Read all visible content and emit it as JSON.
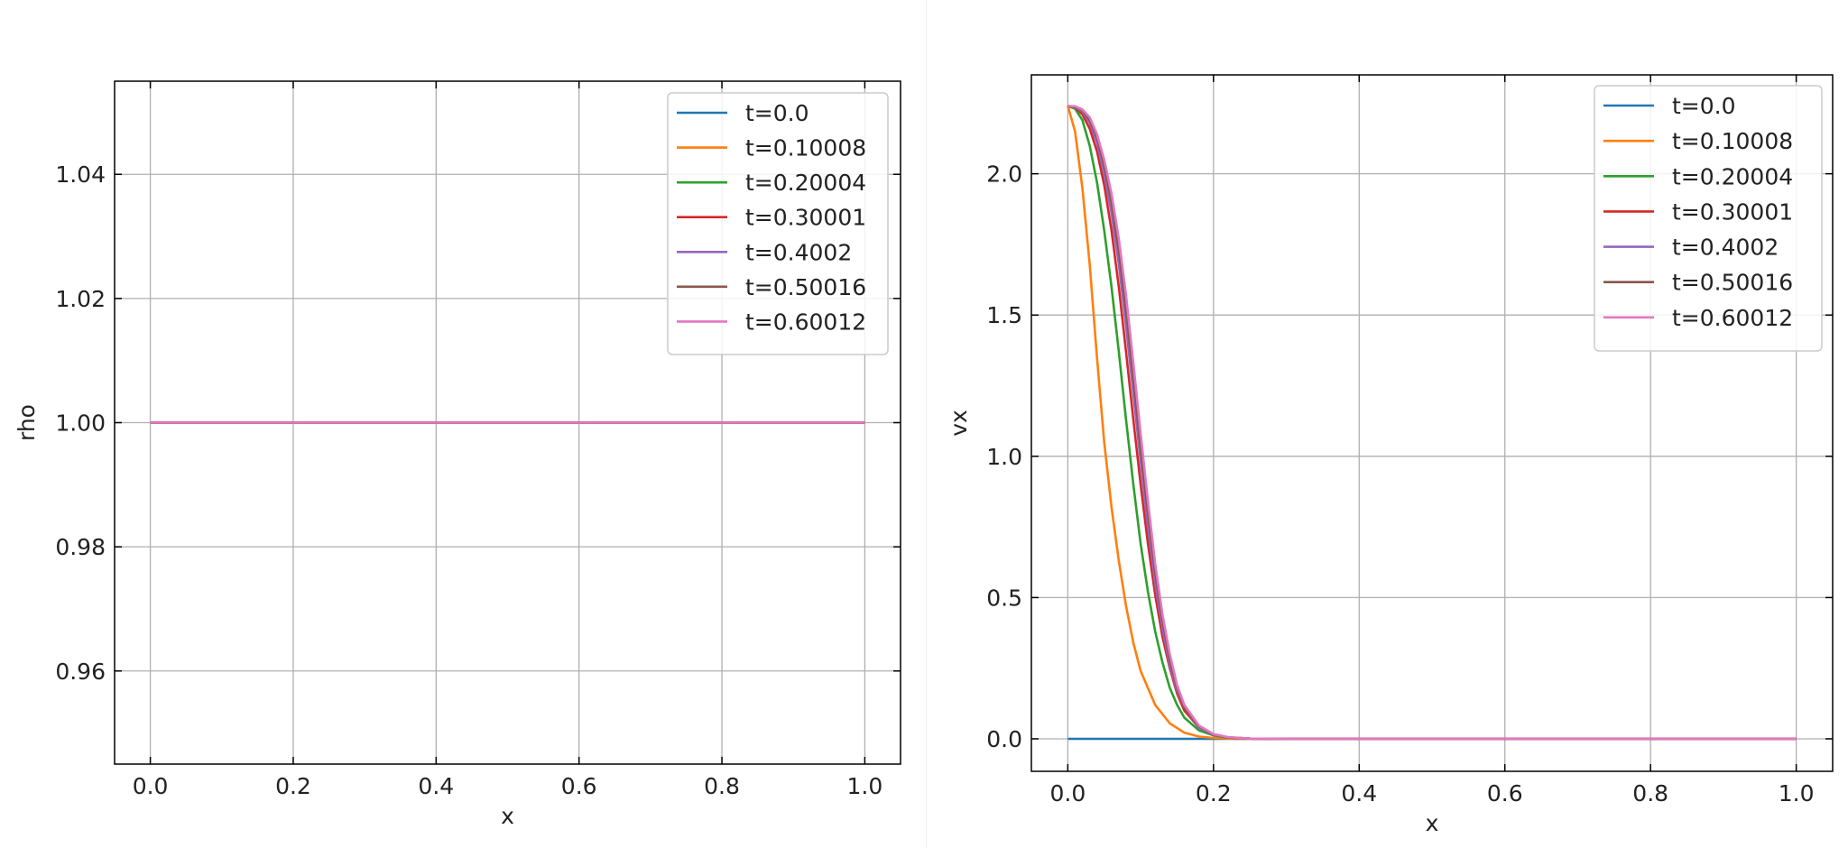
{
  "colors": {
    "series": [
      "#1f77b4",
      "#ff7f0e",
      "#2ca02c",
      "#d62728",
      "#9467bd",
      "#8c564b",
      "#e377c2"
    ],
    "grid": "#b0b0b0",
    "axes": "#000000"
  },
  "chart_data": [
    {
      "type": "line",
      "xlabel": "x",
      "ylabel": "rho",
      "xlim": [
        -0.05,
        1.05
      ],
      "ylim": [
        0.945,
        1.055
      ],
      "xticks": [
        0.0,
        0.2,
        0.4,
        0.6,
        0.8,
        1.0
      ],
      "xtick_labels": [
        "0.0",
        "0.2",
        "0.4",
        "0.6",
        "0.8",
        "1.0"
      ],
      "yticks": [
        0.96,
        0.98,
        1.0,
        1.02,
        1.04
      ],
      "ytick_labels": [
        "0.96",
        "0.98",
        "1.00",
        "1.02",
        "1.04"
      ],
      "grid": true,
      "legend_position": "top-right",
      "series": [
        {
          "name": "t=0.0",
          "x": [
            0.0,
            1.0
          ],
          "y": [
            1.0,
            1.0
          ]
        },
        {
          "name": "t=0.10008",
          "x": [
            0.0,
            1.0
          ],
          "y": [
            1.0,
            1.0
          ]
        },
        {
          "name": "t=0.20004",
          "x": [
            0.0,
            1.0
          ],
          "y": [
            1.0,
            1.0
          ]
        },
        {
          "name": "t=0.30001",
          "x": [
            0.0,
            1.0
          ],
          "y": [
            1.0,
            1.0
          ]
        },
        {
          "name": "t=0.4002",
          "x": [
            0.0,
            1.0
          ],
          "y": [
            1.0,
            1.0
          ]
        },
        {
          "name": "t=0.50016",
          "x": [
            0.0,
            1.0
          ],
          "y": [
            1.0,
            1.0
          ]
        },
        {
          "name": "t=0.60012",
          "x": [
            0.0,
            1.0
          ],
          "y": [
            1.0,
            1.0
          ]
        }
      ]
    },
    {
      "type": "line",
      "xlabel": "x",
      "ylabel": "vx",
      "xlim": [
        -0.05,
        1.05
      ],
      "ylim": [
        -0.115,
        2.35
      ],
      "xticks": [
        0.0,
        0.2,
        0.4,
        0.6,
        0.8,
        1.0
      ],
      "xtick_labels": [
        "0.0",
        "0.2",
        "0.4",
        "0.6",
        "0.8",
        "1.0"
      ],
      "yticks": [
        0.0,
        0.5,
        1.0,
        1.5,
        2.0
      ],
      "ytick_labels": [
        "0.0",
        "0.5",
        "1.0",
        "1.5",
        "2.0"
      ],
      "grid": true,
      "legend_position": "top-right",
      "series": [
        {
          "name": "t=0.0",
          "x": [
            0.0,
            1.0
          ],
          "y": [
            0.0,
            0.0
          ]
        },
        {
          "name": "t=0.10008",
          "x": [
            0.0,
            0.01,
            0.02,
            0.03,
            0.04,
            0.05,
            0.06,
            0.07,
            0.08,
            0.09,
            0.1,
            0.12,
            0.14,
            0.16,
            0.18,
            0.2,
            0.22,
            0.25,
            0.3,
            0.4,
            1.0
          ],
          "y": [
            2.24,
            2.15,
            1.95,
            1.68,
            1.35,
            1.05,
            0.82,
            0.63,
            0.47,
            0.34,
            0.24,
            0.12,
            0.055,
            0.022,
            0.008,
            0.003,
            0.001,
            0.0,
            0.0,
            0.0,
            0.0
          ]
        },
        {
          "name": "t=0.20004",
          "x": [
            0.0,
            0.01,
            0.02,
            0.03,
            0.04,
            0.05,
            0.06,
            0.07,
            0.08,
            0.09,
            0.1,
            0.11,
            0.12,
            0.13,
            0.14,
            0.15,
            0.16,
            0.18,
            0.2,
            0.22,
            0.25,
            0.3,
            1.0
          ],
          "y": [
            2.24,
            2.23,
            2.19,
            2.1,
            1.97,
            1.8,
            1.6,
            1.37,
            1.13,
            0.9,
            0.69,
            0.52,
            0.38,
            0.27,
            0.18,
            0.12,
            0.075,
            0.03,
            0.012,
            0.004,
            0.001,
            0.0,
            0.0
          ]
        },
        {
          "name": "t=0.30001",
          "x": [
            0.0,
            0.01,
            0.02,
            0.03,
            0.04,
            0.05,
            0.06,
            0.07,
            0.08,
            0.09,
            0.1,
            0.11,
            0.12,
            0.13,
            0.14,
            0.15,
            0.16,
            0.18,
            0.2,
            0.22,
            0.25,
            0.3,
            1.0
          ],
          "y": [
            2.24,
            2.235,
            2.21,
            2.16,
            2.08,
            1.96,
            1.8,
            1.6,
            1.37,
            1.13,
            0.9,
            0.69,
            0.51,
            0.36,
            0.25,
            0.16,
            0.1,
            0.04,
            0.014,
            0.005,
            0.001,
            0.0,
            0.0
          ]
        },
        {
          "name": "t=0.4002",
          "x": [
            0.0,
            0.01,
            0.02,
            0.03,
            0.04,
            0.05,
            0.06,
            0.07,
            0.08,
            0.09,
            0.1,
            0.11,
            0.12,
            0.13,
            0.14,
            0.15,
            0.16,
            0.18,
            0.2,
            0.22,
            0.25,
            0.3,
            1.0
          ],
          "y": [
            2.24,
            2.237,
            2.22,
            2.18,
            2.11,
            2.0,
            1.86,
            1.68,
            1.46,
            1.22,
            0.98,
            0.75,
            0.55,
            0.39,
            0.26,
            0.17,
            0.11,
            0.04,
            0.015,
            0.005,
            0.001,
            0.0,
            0.0
          ]
        },
        {
          "name": "t=0.50016",
          "x": [
            0.0,
            0.01,
            0.02,
            0.03,
            0.04,
            0.05,
            0.06,
            0.07,
            0.08,
            0.09,
            0.1,
            0.11,
            0.12,
            0.13,
            0.14,
            0.15,
            0.16,
            0.18,
            0.2,
            0.22,
            0.25,
            0.3,
            1.0
          ],
          "y": [
            2.24,
            2.238,
            2.225,
            2.19,
            2.13,
            2.03,
            1.9,
            1.73,
            1.52,
            1.28,
            1.03,
            0.8,
            0.59,
            0.42,
            0.28,
            0.18,
            0.11,
            0.045,
            0.016,
            0.005,
            0.001,
            0.0,
            0.0
          ]
        },
        {
          "name": "t=0.60012",
          "x": [
            0.0,
            0.01,
            0.02,
            0.03,
            0.04,
            0.05,
            0.06,
            0.07,
            0.08,
            0.09,
            0.1,
            0.11,
            0.12,
            0.13,
            0.14,
            0.15,
            0.16,
            0.18,
            0.2,
            0.22,
            0.25,
            0.3,
            1.0
          ],
          "y": [
            2.24,
            2.239,
            2.228,
            2.2,
            2.14,
            2.05,
            1.93,
            1.77,
            1.57,
            1.33,
            1.08,
            0.84,
            0.62,
            0.44,
            0.3,
            0.19,
            0.12,
            0.047,
            0.017,
            0.006,
            0.001,
            0.0,
            0.0
          ]
        }
      ]
    }
  ]
}
